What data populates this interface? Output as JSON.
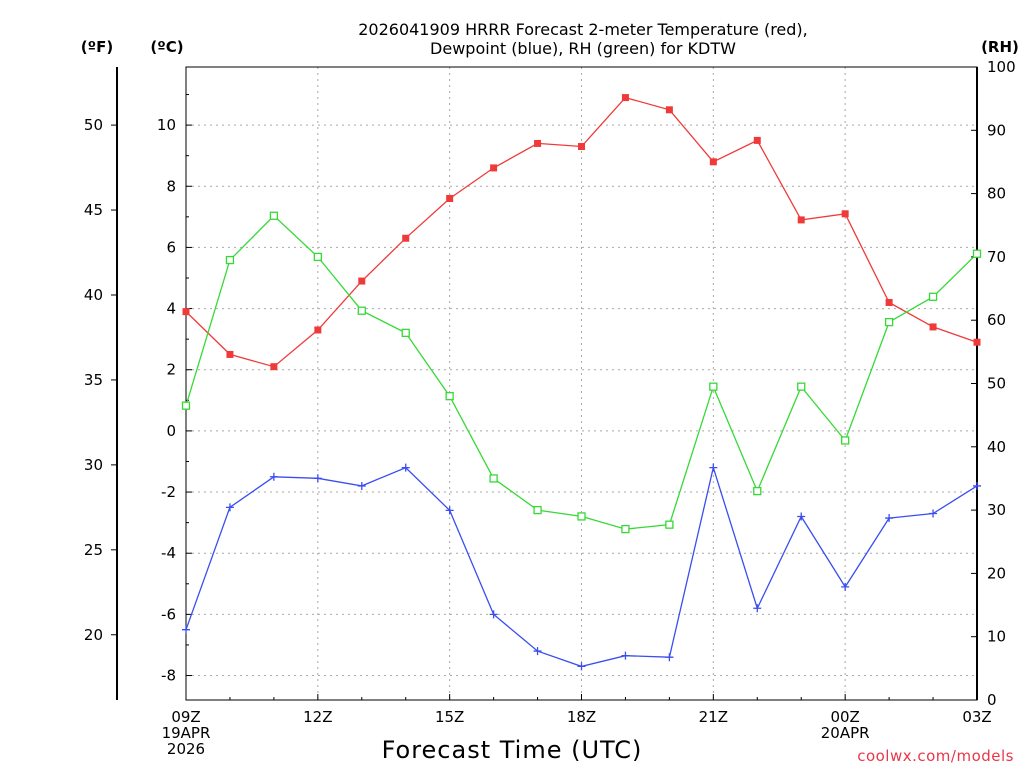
{
  "chart_data": {
    "type": "line",
    "title_lines": [
      "2026041909 HRRR Forecast 2-meter Temperature (red),",
      "Dewpoint (blue), RH (green) for KDTW"
    ],
    "xlabel": "Forecast Time (UTC)",
    "credit": "coolwx.com/models",
    "units": {
      "fahrenheit": "(ºF)",
      "celsius": "(ºC)",
      "rh": "(RH)"
    },
    "x_hours": [
      0,
      1,
      2,
      3,
      4,
      5,
      6,
      7,
      8,
      9,
      10,
      11,
      12,
      13,
      14,
      15,
      16,
      17,
      18
    ],
    "x_ticks": [
      {
        "hour": 0,
        "lines": [
          "09Z",
          "19APR",
          "2026"
        ]
      },
      {
        "hour": 3,
        "lines": [
          "12Z"
        ]
      },
      {
        "hour": 6,
        "lines": [
          "15Z"
        ]
      },
      {
        "hour": 9,
        "lines": [
          "18Z"
        ]
      },
      {
        "hour": 12,
        "lines": [
          "21Z"
        ]
      },
      {
        "hour": 15,
        "lines": [
          "00Z",
          "20APR"
        ]
      },
      {
        "hour": 18,
        "lines": [
          "03Z"
        ]
      }
    ],
    "x_range": [
      0,
      18
    ],
    "celsius_range": [
      -8.8,
      11.9
    ],
    "rh_range": [
      0,
      100
    ],
    "celsius_ticks": [
      "-8",
      "-6",
      "-4",
      "-2",
      "0",
      "2",
      "4",
      "6",
      "8",
      "10"
    ],
    "fahrenheit_ticks": [
      "20",
      "25",
      "30",
      "35",
      "40",
      "45",
      "50"
    ],
    "rh_ticks": [
      "0",
      "10",
      "20",
      "30",
      "40",
      "50",
      "60",
      "70",
      "80",
      "90",
      "100"
    ],
    "series": [
      {
        "name": "2-meter Temperature",
        "axis": "celsius",
        "color": "#f03a3a",
        "marker": "filled-square",
        "values": [
          3.9,
          2.5,
          2.1,
          3.3,
          4.9,
          6.3,
          7.6,
          8.6,
          9.4,
          9.3,
          10.9,
          10.5,
          8.8,
          9.5,
          6.9,
          7.1,
          4.2,
          3.4,
          2.9
        ]
      },
      {
        "name": "Dewpoint",
        "axis": "celsius",
        "color": "#3a4ef0",
        "marker": "plus",
        "values": [
          -6.5,
          -2.5,
          -1.5,
          -1.55,
          -1.8,
          -1.2,
          -2.6,
          -6.0,
          -7.2,
          -7.7,
          -7.35,
          -7.4,
          -1.2,
          -5.8,
          -2.8,
          -5.1,
          -2.85,
          -2.7,
          -1.8
        ]
      },
      {
        "name": "Relative Humidity",
        "axis": "rh",
        "color": "#36d936",
        "marker": "open-square",
        "values": [
          46.5,
          69.5,
          76.5,
          70.0,
          61.5,
          58.0,
          48.0,
          35.0,
          30.0,
          29.0,
          27.0,
          27.7,
          49.5,
          33.0,
          49.5,
          41.0,
          59.7,
          63.7,
          70.5
        ]
      }
    ]
  }
}
